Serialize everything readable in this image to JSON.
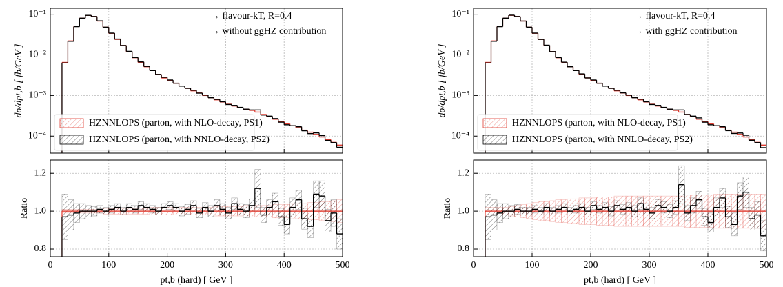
{
  "chart_data": [
    {
      "type": "histogram",
      "log_y": true,
      "grid": true,
      "xtick_labels": false,
      "legend": "lower left",
      "ylabel": "dσ/dpt,b [ fb/GeV ]",
      "annotations": [
        "→ flavour-kT, R=0.4",
        "→ without ggHZ contribution"
      ],
      "xlim": [
        0,
        500
      ],
      "xticks": [
        0,
        100,
        200,
        300,
        400,
        500
      ],
      "ylim": [
        3.8e-05,
        0.14
      ],
      "yticks": [
        {
          "value": 0.1,
          "label": "10⁻¹"
        },
        {
          "value": 0.01,
          "label": "10⁻²"
        },
        {
          "value": 0.001,
          "label": "10⁻³"
        },
        {
          "value": 0.0001,
          "label": "10⁻⁴"
        }
      ],
      "bins": [
        20,
        30,
        40,
        50,
        60,
        70,
        80,
        90,
        100,
        110,
        120,
        130,
        140,
        150,
        160,
        170,
        180,
        190,
        200,
        210,
        220,
        230,
        240,
        250,
        260,
        270,
        280,
        290,
        300,
        310,
        320,
        330,
        340,
        350,
        360,
        370,
        380,
        390,
        400,
        410,
        420,
        430,
        440,
        450,
        460,
        470,
        480,
        490,
        500
      ],
      "series": [
        {
          "name": "HZNNLOPS (parton, with NLO-decay, PS1)",
          "color": "#e03c31",
          "values": [
            0.0065,
            0.022,
            0.05,
            0.08,
            0.094,
            0.088,
            0.068,
            0.048,
            0.034,
            0.024,
            0.017,
            0.012,
            0.0085,
            0.0065,
            0.0051,
            0.0041,
            0.0033,
            0.0027,
            0.0023,
            0.002,
            0.0017,
            0.0015,
            0.0013,
            0.00115,
            0.001,
            0.00088,
            0.00078,
            0.00069,
            0.00061,
            0.00055,
            0.0005,
            0.00046,
            0.00043,
            0.00039,
            0.00034,
            0.0003,
            0.00026,
            0.00023,
            0.0002,
            0.00018,
            0.00016,
            0.00014,
            0.000125,
            0.00011,
            9.5e-05,
            8.2e-05,
            7e-05,
            6e-05
          ]
        },
        {
          "name": "HZNNLOPS (parton, with NNLO-decay, PS2)",
          "color": "#000000",
          "values": [
            0.0063,
            0.0216,
            0.0495,
            0.08,
            0.094,
            0.088,
            0.0687,
            0.048,
            0.0343,
            0.0245,
            0.017,
            0.0122,
            0.0086,
            0.0067,
            0.0052,
            0.0041,
            0.0033,
            0.0028,
            0.0024,
            0.002,
            0.0017,
            0.0015,
            0.00134,
            0.00114,
            0.00102,
            0.00088,
            0.0008,
            0.0007,
            0.0006,
            0.00057,
            0.00051,
            0.00046,
            0.00044,
            0.00044,
            0.00033,
            0.00031,
            0.00027,
            0.00022,
            0.00019,
            0.00018,
            0.00017,
            0.000135,
            0.000115,
            0.00012,
            0.000103,
            7.8e-05,
            6.9e-05,
            5.3e-05
          ]
        }
      ]
    },
    {
      "type": "histogram",
      "log_y": false,
      "grid": true,
      "xtick_labels": true,
      "ylabel": "Ratio",
      "xlabel": "pt,b (hard) [ GeV ]",
      "xlim": [
        0,
        500
      ],
      "xticks": [
        0,
        100,
        200,
        300,
        400,
        500
      ],
      "ylim": [
        0.76,
        1.27
      ],
      "yticks": [
        0.8,
        {
          "value": 1,
          "label": "1.0"
        },
        1.2
      ],
      "bins": [
        20,
        30,
        40,
        50,
        60,
        70,
        80,
        90,
        100,
        110,
        120,
        130,
        140,
        150,
        160,
        170,
        180,
        190,
        200,
        210,
        220,
        230,
        240,
        250,
        260,
        270,
        280,
        290,
        300,
        310,
        320,
        330,
        340,
        350,
        360,
        370,
        380,
        390,
        400,
        410,
        420,
        430,
        440,
        450,
        460,
        470,
        480,
        490,
        500
      ],
      "series": [
        {
          "color": "#e03c31",
          "values": [
            1,
            1,
            1,
            1,
            1,
            1,
            1,
            1,
            1,
            1,
            1,
            1,
            1,
            1,
            1,
            1,
            1,
            1,
            1,
            1,
            1,
            1,
            1,
            1,
            1,
            1,
            1,
            1,
            1,
            1,
            1,
            1,
            1,
            1,
            1,
            1,
            1,
            1,
            1,
            1,
            1,
            1,
            1,
            1,
            1,
            1,
            1,
            1
          ],
          "errors": [
            0.01,
            0.01,
            0.01,
            0.01,
            0.01,
            0.01,
            0.01,
            0.015,
            0.015,
            0.015,
            0.015,
            0.015,
            0.015,
            0.015,
            0.015,
            0.02,
            0.02,
            0.02,
            0.02,
            0.02,
            0.02,
            0.02,
            0.02,
            0.02,
            0.02,
            0.02,
            0.025,
            0.025,
            0.025,
            0.025,
            0.025,
            0.03,
            0.03,
            0.03,
            0.03,
            0.03,
            0.035,
            0.035,
            0.035,
            0.04,
            0.04,
            0.04,
            0.045,
            0.045,
            0.05,
            0.05,
            0.055,
            0.06
          ]
        },
        {
          "color": "#000000",
          "values": [
            0.97,
            0.98,
            0.99,
            1.0,
            1.0,
            1.0,
            1.01,
            1.0,
            1.01,
            1.02,
            1.0,
            1.02,
            1.01,
            1.03,
            1.02,
            1.01,
            1.0,
            1.02,
            1.03,
            1.02,
            1.0,
            1.01,
            1.03,
            0.99,
            1.02,
            1.0,
            1.03,
            1.01,
            0.99,
            1.04,
            1.01,
            1.0,
            1.03,
            1.12,
            0.98,
            1.02,
            1.05,
            0.97,
            0.93,
            1.02,
            1.06,
            0.96,
            0.92,
            1.09,
            1.08,
            0.95,
            0.99,
            0.88
          ],
          "errors": [
            0.12,
            0.08,
            0.05,
            0.04,
            0.03,
            0.025,
            0.02,
            0.02,
            0.02,
            0.02,
            0.02,
            0.02,
            0.02,
            0.02,
            0.02,
            0.02,
            0.02,
            0.02,
            0.02,
            0.02,
            0.025,
            0.025,
            0.025,
            0.025,
            0.025,
            0.03,
            0.03,
            0.03,
            0.03,
            0.03,
            0.03,
            0.035,
            0.035,
            0.1,
            0.04,
            0.04,
            0.045,
            0.045,
            0.05,
            0.05,
            0.05,
            0.055,
            0.06,
            0.07,
            0.08,
            0.06,
            0.07,
            0.08
          ]
        }
      ]
    },
    {
      "type": "histogram",
      "log_y": true,
      "grid": true,
      "xtick_labels": false,
      "legend": "lower left",
      "ylabel": "dσ/dpt,b [ fb/GeV ]",
      "annotations": [
        "→ flavour-kT, R=0.4",
        "→ with ggHZ contribution"
      ],
      "xlim": [
        0,
        500
      ],
      "xticks": [
        0,
        100,
        200,
        300,
        400,
        500
      ],
      "ylim": [
        3.8e-05,
        0.14
      ],
      "yticks": [
        {
          "value": 0.1,
          "label": "10⁻¹"
        },
        {
          "value": 0.01,
          "label": "10⁻²"
        },
        {
          "value": 0.001,
          "label": "10⁻³"
        },
        {
          "value": 0.0001,
          "label": "10⁻⁴"
        }
      ],
      "bins": [
        20,
        30,
        40,
        50,
        60,
        70,
        80,
        90,
        100,
        110,
        120,
        130,
        140,
        150,
        160,
        170,
        180,
        190,
        200,
        210,
        220,
        230,
        240,
        250,
        260,
        270,
        280,
        290,
        300,
        310,
        320,
        330,
        340,
        350,
        360,
        370,
        380,
        390,
        400,
        410,
        420,
        430,
        440,
        450,
        460,
        470,
        480,
        490,
        500
      ],
      "series": [
        {
          "name": "HZNNLOPS (parton, with NLO-decay, PS1)",
          "color": "#e03c31",
          "values": [
            0.0065,
            0.022,
            0.05,
            0.08,
            0.094,
            0.088,
            0.068,
            0.048,
            0.034,
            0.024,
            0.017,
            0.012,
            0.0085,
            0.0065,
            0.0051,
            0.0041,
            0.0033,
            0.0027,
            0.0023,
            0.002,
            0.0017,
            0.0015,
            0.0013,
            0.00115,
            0.001,
            0.00088,
            0.00078,
            0.00069,
            0.00061,
            0.00055,
            0.0005,
            0.00046,
            0.00043,
            0.00039,
            0.00034,
            0.0003,
            0.00026,
            0.00023,
            0.0002,
            0.00018,
            0.00016,
            0.00014,
            0.000125,
            0.00011,
            9.5e-05,
            8.2e-05,
            7e-05,
            6e-05
          ]
        },
        {
          "name": "HZNNLOPS (parton, with NNLO-decay, PS2)",
          "color": "#000000",
          "values": [
            0.0063,
            0.0216,
            0.0495,
            0.08,
            0.0949,
            0.088,
            0.068,
            0.048,
            0.0343,
            0.024,
            0.0173,
            0.012,
            0.0086,
            0.0066,
            0.0051,
            0.0041,
            0.0034,
            0.0027,
            0.0024,
            0.002,
            0.0017,
            0.0015,
            0.00134,
            0.00116,
            0.00102,
            0.00088,
            0.00081,
            0.0007,
            0.0006,
            0.00057,
            0.00051,
            0.00046,
            0.00044,
            0.00044,
            0.00034,
            0.00031,
            0.00028,
            0.00022,
            0.00019,
            0.00018,
            0.00017,
            0.000136,
            0.000116,
            0.000119,
            0.000105,
            7.9e-05,
            6.9e-05,
            5.2e-05
          ]
        }
      ]
    },
    {
      "type": "histogram",
      "log_y": false,
      "grid": true,
      "xtick_labels": true,
      "ylabel": "Ratio",
      "xlabel": "pt,b (hard) [ GeV ]",
      "xlim": [
        0,
        500
      ],
      "xticks": [
        0,
        100,
        200,
        300,
        400,
        500
      ],
      "ylim": [
        0.76,
        1.27
      ],
      "yticks": [
        0.8,
        {
          "value": 1,
          "label": "1.0"
        },
        1.2
      ],
      "bins": [
        20,
        30,
        40,
        50,
        60,
        70,
        80,
        90,
        100,
        110,
        120,
        130,
        140,
        150,
        160,
        170,
        180,
        190,
        200,
        210,
        220,
        230,
        240,
        250,
        260,
        270,
        280,
        290,
        300,
        310,
        320,
        330,
        340,
        350,
        360,
        370,
        380,
        390,
        400,
        410,
        420,
        430,
        440,
        450,
        460,
        470,
        480,
        490,
        500
      ],
      "series": [
        {
          "color": "#e03c31",
          "values": [
            1,
            1,
            1,
            1,
            1,
            1,
            1,
            1,
            1,
            1,
            1,
            1,
            1,
            1,
            1,
            1,
            1,
            1,
            1,
            1,
            1,
            1,
            1,
            1,
            1,
            1,
            1,
            1,
            1,
            1,
            1,
            1,
            1,
            1,
            1,
            1,
            1,
            1,
            1,
            1,
            1,
            1,
            1,
            1,
            1,
            1,
            1,
            1
          ],
          "errors": [
            0.02,
            0.02,
            0.02,
            0.02,
            0.025,
            0.03,
            0.035,
            0.04,
            0.045,
            0.05,
            0.05,
            0.055,
            0.06,
            0.06,
            0.065,
            0.065,
            0.07,
            0.07,
            0.07,
            0.075,
            0.075,
            0.075,
            0.08,
            0.08,
            0.08,
            0.08,
            0.08,
            0.08,
            0.08,
            0.08,
            0.08,
            0.08,
            0.08,
            0.08,
            0.085,
            0.085,
            0.085,
            0.085,
            0.085,
            0.09,
            0.09,
            0.09,
            0.09,
            0.09,
            0.09,
            0.09,
            0.09,
            0.09
          ]
        },
        {
          "color": "#000000",
          "values": [
            0.97,
            0.98,
            0.99,
            1.0,
            1.0,
            1.01,
            1.0,
            1.0,
            1.01,
            1.0,
            1.02,
            1.0,
            1.01,
            1.02,
            1.0,
            1.01,
            1.02,
            1.0,
            1.03,
            1.01,
            1.02,
            1.0,
            1.03,
            1.01,
            1.02,
            1.0,
            1.04,
            1.01,
            0.99,
            1.03,
            1.02,
            1.0,
            1.02,
            1.14,
            0.99,
            1.03,
            1.06,
            0.97,
            0.94,
            1.02,
            1.07,
            0.97,
            0.93,
            1.08,
            1.1,
            0.96,
            0.98,
            0.87
          ],
          "errors": [
            0.12,
            0.08,
            0.05,
            0.04,
            0.03,
            0.025,
            0.02,
            0.02,
            0.02,
            0.02,
            0.02,
            0.02,
            0.02,
            0.02,
            0.02,
            0.02,
            0.02,
            0.02,
            0.02,
            0.02,
            0.025,
            0.025,
            0.025,
            0.025,
            0.025,
            0.03,
            0.03,
            0.03,
            0.03,
            0.03,
            0.03,
            0.035,
            0.035,
            0.1,
            0.04,
            0.04,
            0.045,
            0.045,
            0.05,
            0.05,
            0.05,
            0.055,
            0.06,
            0.07,
            0.08,
            0.06,
            0.07,
            0.08
          ]
        }
      ]
    }
  ]
}
